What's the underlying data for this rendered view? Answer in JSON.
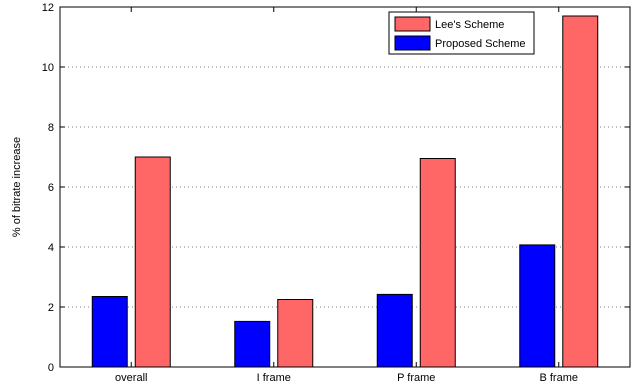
{
  "chart_data": {
    "type": "bar",
    "ylabel": "% of bitrate increase",
    "xlabel": "",
    "ylim": [
      0,
      12
    ],
    "yticks": [
      0,
      2,
      4,
      6,
      8,
      10,
      12
    ],
    "grid": "y-dotted",
    "legend_position": "top-right",
    "categories": [
      "overall",
      "I frame",
      "P frame",
      "B frame"
    ],
    "series": [
      {
        "name": "Lee's Scheme",
        "color": "#ff6666",
        "values": [
          7.0,
          2.25,
          6.95,
          11.7
        ]
      },
      {
        "name": "Proposed Scheme",
        "color": "#0000ff",
        "values": [
          2.35,
          1.52,
          2.42,
          4.07
        ]
      }
    ]
  }
}
